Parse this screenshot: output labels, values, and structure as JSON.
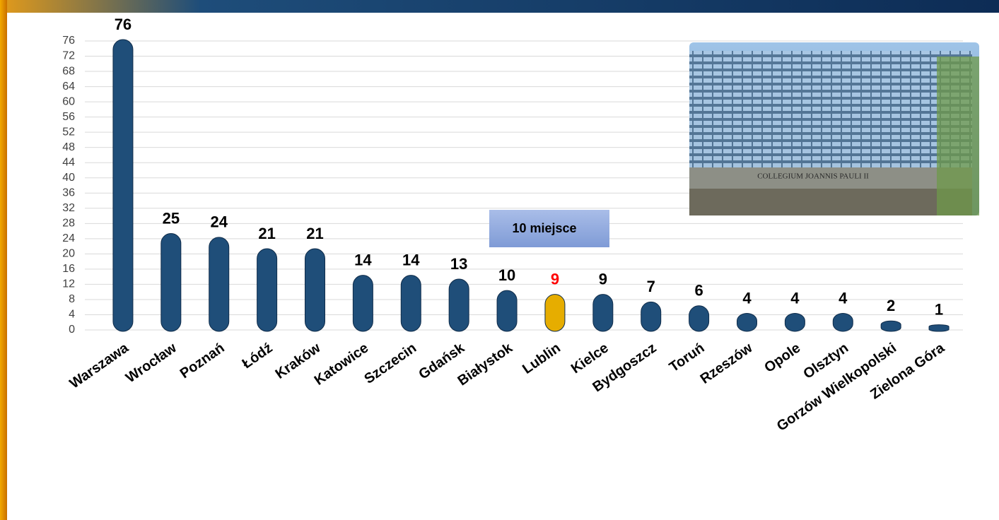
{
  "chart_data": {
    "type": "bar",
    "categories": [
      "Warszawa",
      "Wrocław",
      "Poznań",
      "Łódź",
      "Kraków",
      "Katowice",
      "Szczecin",
      "Gdańsk",
      "Białystok",
      "Lublin",
      "Kielce",
      "Bydgoszcz",
      "Toruń",
      "Rzeszów",
      "Opole",
      "Olsztyn",
      "Gorzów Wielkopolski",
      "Zielona Góra"
    ],
    "values": [
      76,
      25,
      24,
      21,
      21,
      14,
      14,
      13,
      10,
      9,
      9,
      7,
      6,
      4,
      4,
      4,
      2,
      1
    ],
    "colors": [
      "#1f4e79",
      "#1f4e79",
      "#1f4e79",
      "#1f4e79",
      "#1f4e79",
      "#1f4e79",
      "#1f4e79",
      "#1f4e79",
      "#1f4e79",
      "#e6ad00",
      "#1f4e79",
      "#1f4e79",
      "#1f4e79",
      "#1f4e79",
      "#1f4e79",
      "#1f4e79",
      "#1f4e79",
      "#1f4e79"
    ],
    "value_label_colors": [
      "#000000",
      "#000000",
      "#000000",
      "#000000",
      "#000000",
      "#000000",
      "#000000",
      "#000000",
      "#000000",
      "#ff0000",
      "#000000",
      "#000000",
      "#000000",
      "#000000",
      "#000000",
      "#000000",
      "#000000",
      "#000000"
    ],
    "ylim": [
      0,
      76
    ],
    "yticks": [
      0,
      4,
      8,
      12,
      16,
      20,
      24,
      28,
      32,
      36,
      40,
      44,
      48,
      52,
      56,
      60,
      64,
      68,
      72,
      76
    ],
    "grid": true,
    "annotation": "10 miejsce",
    "image_text": "COLLEGIUM JOANNIS PAULI II"
  }
}
